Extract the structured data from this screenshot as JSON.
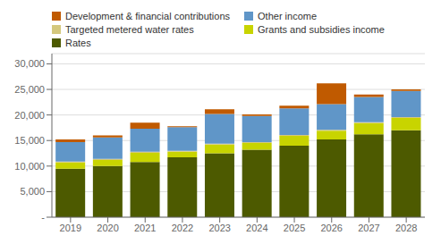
{
  "chart_data": {
    "type": "bar",
    "stacked": true,
    "grid": true,
    "legend": "upper left",
    "categories": [
      "2019",
      "2020",
      "2021",
      "2022",
      "2023",
      "2024",
      "2025",
      "2026",
      "2027",
      "2028"
    ],
    "series": [
      {
        "name": "Rates",
        "color": "#4d5a00",
        "values": [
          9500,
          10000,
          10800,
          11700,
          12500,
          13200,
          14000,
          15200,
          16200,
          17000
        ]
      },
      {
        "name": "Grants and subsidies income",
        "color": "#c8d400",
        "values": [
          1200,
          1200,
          1800,
          1100,
          1700,
          1300,
          1900,
          1700,
          2200,
          2400
        ]
      },
      {
        "name": "Targeted metered water rates",
        "color": "#d4c87d",
        "values": [
          200,
          200,
          200,
          200,
          200,
          200,
          200,
          200,
          200,
          200
        ]
      },
      {
        "name": "Other income",
        "color": "#6096c8",
        "values": [
          3800,
          4200,
          4500,
          4600,
          5800,
          5100,
          5200,
          5000,
          4900,
          5100
        ]
      },
      {
        "name": "Development & financial contributions",
        "color": "#c05a00",
        "values": [
          500,
          400,
          1200,
          200,
          900,
          300,
          500,
          4100,
          500,
          300
        ]
      }
    ],
    "ylim": [
      0,
      32000
    ],
    "yticks": [
      {
        "value": 0,
        "label": "-"
      },
      {
        "value": 5000,
        "label": "5,000"
      },
      {
        "value": 10000,
        "label": "10,000"
      },
      {
        "value": 15000,
        "label": "15,000"
      },
      {
        "value": 20000,
        "label": "20,000"
      },
      {
        "value": 25000,
        "label": "25,000"
      },
      {
        "value": 30000,
        "label": "30,000"
      }
    ]
  }
}
